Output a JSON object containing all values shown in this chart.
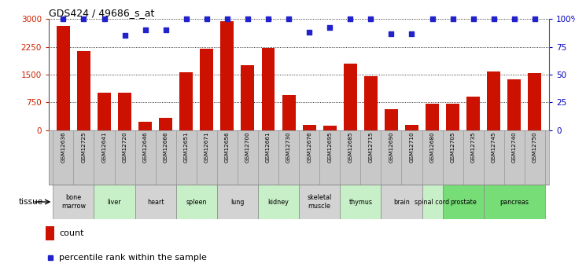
{
  "title": "GDS424 / 49686_s_at",
  "samples": [
    "GSM12636",
    "GSM12725",
    "GSM12641",
    "GSM12720",
    "GSM12646",
    "GSM12666",
    "GSM12651",
    "GSM12671",
    "GSM12656",
    "GSM12700",
    "GSM12661",
    "GSM12730",
    "GSM12676",
    "GSM12695",
    "GSM12685",
    "GSM12715",
    "GSM12690",
    "GSM12710",
    "GSM12680",
    "GSM12705",
    "GSM12735",
    "GSM12745",
    "GSM12740",
    "GSM12750"
  ],
  "counts": [
    2820,
    2130,
    1020,
    1000,
    220,
    330,
    1560,
    2200,
    2950,
    1750,
    2220,
    950,
    150,
    120,
    1800,
    1450,
    570,
    130,
    710,
    710,
    910,
    1580,
    1380,
    1530
  ],
  "percentiles": [
    100,
    100,
    100,
    85,
    90,
    90,
    100,
    100,
    100,
    100,
    100,
    100,
    88,
    92,
    100,
    100,
    87,
    87,
    100,
    100,
    100,
    100,
    100,
    100
  ],
  "tissues": [
    {
      "name": "bone\nmarrow",
      "start": 0,
      "end": 2,
      "color": "#d3d3d3"
    },
    {
      "name": "liver",
      "start": 2,
      "end": 4,
      "color": "#c8f0c8"
    },
    {
      "name": "heart",
      "start": 4,
      "end": 6,
      "color": "#d3d3d3"
    },
    {
      "name": "spleen",
      "start": 6,
      "end": 8,
      "color": "#c8f0c8"
    },
    {
      "name": "lung",
      "start": 8,
      "end": 10,
      "color": "#d3d3d3"
    },
    {
      "name": "kidney",
      "start": 10,
      "end": 12,
      "color": "#c8f0c8"
    },
    {
      "name": "skeletal\nmuscle",
      "start": 12,
      "end": 14,
      "color": "#d3d3d3"
    },
    {
      "name": "thymus",
      "start": 14,
      "end": 16,
      "color": "#c8f0c8"
    },
    {
      "name": "brain",
      "start": 16,
      "end": 18,
      "color": "#d3d3d3"
    },
    {
      "name": "spinal cord",
      "start": 18,
      "end": 19,
      "color": "#c8f0c8"
    },
    {
      "name": "prostate",
      "start": 19,
      "end": 21,
      "color": "#77dd77"
    },
    {
      "name": "pancreas",
      "start": 21,
      "end": 24,
      "color": "#77dd77"
    }
  ],
  "ylim_left": [
    0,
    3000
  ],
  "ylim_right": [
    0,
    100
  ],
  "yticks_left": [
    0,
    750,
    1500,
    2250,
    3000
  ],
  "yticks_right": [
    0,
    25,
    50,
    75,
    100
  ],
  "bar_color": "#cc1100",
  "dot_color": "#2222cc",
  "bg_color": "#ffffff",
  "grid_color": "#000000",
  "left_tick_color": "#cc2200",
  "right_tick_color": "#0000bb",
  "xlabels_bg": "#c8c8c8",
  "tissue_border": "#888888"
}
